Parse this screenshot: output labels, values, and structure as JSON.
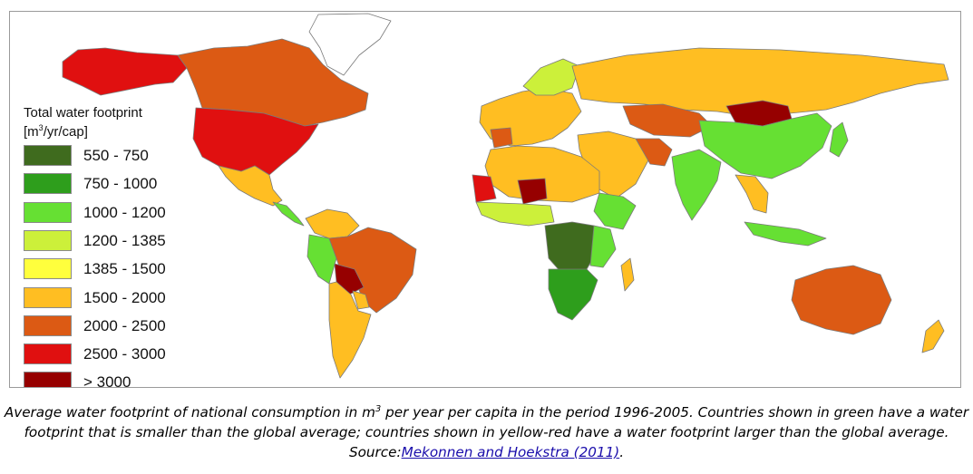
{
  "legend": {
    "title_line1": "Total water footprint",
    "title_unit_prefix": "[m",
    "title_unit_exp": "3",
    "title_unit_suffix": "/yr/cap]",
    "items": [
      {
        "label": "550 - 750",
        "color": "#3f6b1e"
      },
      {
        "label": "750 - 1000",
        "color": "#2e9e1c"
      },
      {
        "label": "1000 - 1200",
        "color": "#66e033"
      },
      {
        "label": "1200 - 1385",
        "color": "#ccf03a"
      },
      {
        "label": "1385 - 1500",
        "color": "#ffff3d"
      },
      {
        "label": "1500 - 2000",
        "color": "#ffbe22"
      },
      {
        "label": "2000 - 2500",
        "color": "#dc5a14"
      },
      {
        "label": "2500 - 3000",
        "color": "#e01010"
      },
      {
        "label": "> 3000",
        "color": "#960000"
      }
    ]
  },
  "caption": {
    "part1": "Average water footprint of national consumption in m",
    "exp": "3",
    "part2": " per year per capita in the period 1996-2005. Countries shown in green have a water footprint that is smaller than the global average; countries shown in yellow-red have a water footprint larger than the global average. Source:",
    "link_text": "Mekonnen and Hoekstra (2011)",
    "end": "."
  }
}
